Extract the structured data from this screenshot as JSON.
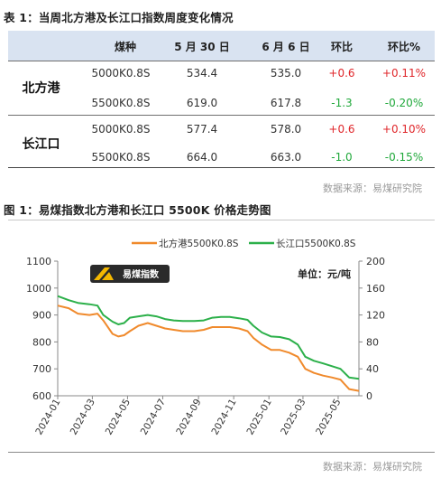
{
  "table_heading": "表 1：当周北方港及长江口指数周度变化情况",
  "table": {
    "headers": [
      "煤种",
      "5 月 30 日",
      "6 月 6 日",
      "环比",
      "环比%"
    ],
    "groups": [
      {
        "region": "北方港",
        "rows": [
          {
            "coal": "5000K0.8S",
            "may30": "534.4",
            "jun6": "535.0",
            "chg": "+0.6",
            "chg_pct": "+0.11%",
            "direction": "up"
          },
          {
            "coal": "5500K0.8S",
            "may30": "619.0",
            "jun6": "617.8",
            "chg": "-1.3",
            "chg_pct": "-0.20%",
            "direction": "down"
          }
        ]
      },
      {
        "region": "长江口",
        "rows": [
          {
            "coal": "5000K0.8S",
            "may30": "577.4",
            "jun6": "578.0",
            "chg": "+0.6",
            "chg_pct": "+0.10%",
            "direction": "up"
          },
          {
            "coal": "5500K0.8S",
            "may30": "664.0",
            "jun6": "663.0",
            "chg": "-1.0",
            "chg_pct": "-0.15%",
            "direction": "down"
          }
        ]
      }
    ],
    "source": "数据来源：易煤研究院"
  },
  "chart_heading": "图 1：易煤指数北方港和长江口 5500K 价格走势图",
  "chart_data": {
    "type": "line",
    "title": "",
    "unit_label": "单位：元/吨",
    "logo_text": "易煤指数",
    "legend_position": "top",
    "x_tick_labels": [
      "2024-01",
      "2024-03",
      "2024-05",
      "2024-07",
      "2024-09",
      "2024-11",
      "2025-01",
      "2025-03",
      "2025-05"
    ],
    "xlim": [
      "2024-01-01",
      "2025-06-06"
    ],
    "ylim_left": [
      600,
      1100
    ],
    "yticks_left": [
      600,
      700,
      800,
      900,
      1000,
      1100
    ],
    "ylim_right": [
      0,
      200
    ],
    "yticks_right": [
      0,
      40,
      80,
      120,
      160,
      200
    ],
    "grid": false,
    "series": [
      {
        "name": "北方港5500K0.8S",
        "color": "#f08a2c",
        "axis": "left",
        "points": [
          [
            "2024-01-01",
            935
          ],
          [
            "2024-01-20",
            925
          ],
          [
            "2024-02-05",
            905
          ],
          [
            "2024-02-25",
            900
          ],
          [
            "2024-03-10",
            905
          ],
          [
            "2024-03-20",
            880
          ],
          [
            "2024-04-05",
            830
          ],
          [
            "2024-04-15",
            820
          ],
          [
            "2024-04-25",
            825
          ],
          [
            "2024-05-05",
            840
          ],
          [
            "2024-05-20",
            860
          ],
          [
            "2024-06-05",
            870
          ],
          [
            "2024-06-20",
            860
          ],
          [
            "2024-07-05",
            850
          ],
          [
            "2024-07-20",
            845
          ],
          [
            "2024-08-05",
            840
          ],
          [
            "2024-08-25",
            840
          ],
          [
            "2024-09-10",
            845
          ],
          [
            "2024-09-25",
            855
          ],
          [
            "2024-10-10",
            855
          ],
          [
            "2024-10-25",
            855
          ],
          [
            "2024-11-10",
            850
          ],
          [
            "2024-11-25",
            840
          ],
          [
            "2024-12-05",
            815
          ],
          [
            "2024-12-20",
            790
          ],
          [
            "2025-01-05",
            770
          ],
          [
            "2025-01-20",
            770
          ],
          [
            "2025-02-05",
            760
          ],
          [
            "2025-02-20",
            745
          ],
          [
            "2025-03-05",
            700
          ],
          [
            "2025-03-20",
            685
          ],
          [
            "2025-04-05",
            675
          ],
          [
            "2025-04-20",
            668
          ],
          [
            "2025-05-05",
            660
          ],
          [
            "2025-05-20",
            625
          ],
          [
            "2025-06-06",
            618
          ]
        ]
      },
      {
        "name": "长江口5500K0.8S",
        "color": "#2cb04a",
        "axis": "left",
        "points": [
          [
            "2024-01-01",
            970
          ],
          [
            "2024-01-20",
            955
          ],
          [
            "2024-02-05",
            945
          ],
          [
            "2024-02-25",
            940
          ],
          [
            "2024-03-10",
            935
          ],
          [
            "2024-03-20",
            900
          ],
          [
            "2024-04-05",
            875
          ],
          [
            "2024-04-15",
            865
          ],
          [
            "2024-04-25",
            870
          ],
          [
            "2024-05-05",
            890
          ],
          [
            "2024-05-20",
            895
          ],
          [
            "2024-06-05",
            900
          ],
          [
            "2024-06-20",
            895
          ],
          [
            "2024-07-05",
            885
          ],
          [
            "2024-07-20",
            880
          ],
          [
            "2024-08-05",
            878
          ],
          [
            "2024-08-25",
            878
          ],
          [
            "2024-09-10",
            880
          ],
          [
            "2024-09-25",
            890
          ],
          [
            "2024-10-10",
            893
          ],
          [
            "2024-10-25",
            893
          ],
          [
            "2024-11-10",
            888
          ],
          [
            "2024-11-25",
            882
          ],
          [
            "2024-12-05",
            860
          ],
          [
            "2024-12-20",
            835
          ],
          [
            "2025-01-05",
            820
          ],
          [
            "2025-01-20",
            818
          ],
          [
            "2025-02-05",
            810
          ],
          [
            "2025-02-20",
            790
          ],
          [
            "2025-03-05",
            745
          ],
          [
            "2025-03-20",
            730
          ],
          [
            "2025-04-05",
            720
          ],
          [
            "2025-04-20",
            710
          ],
          [
            "2025-05-05",
            700
          ],
          [
            "2025-05-20",
            668
          ],
          [
            "2025-06-06",
            663
          ]
        ]
      }
    ]
  },
  "chart_source": "数据来源：易煤研究院"
}
